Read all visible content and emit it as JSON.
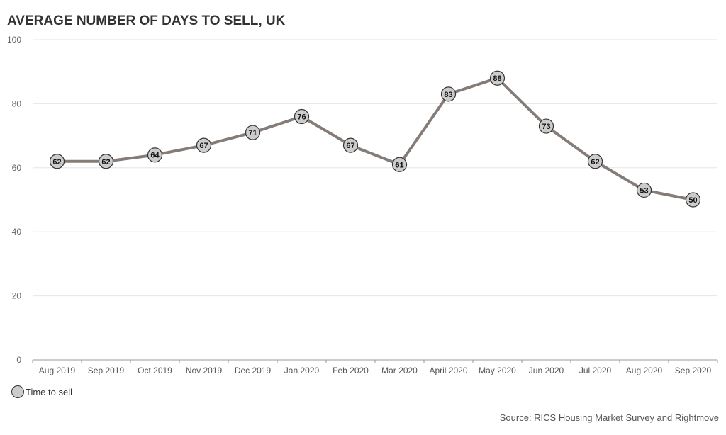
{
  "chart_data": {
    "type": "line",
    "title": "AVERAGE NUMBER OF DAYS TO SELL, UK",
    "categories": [
      "Aug 2019",
      "Sep 2019",
      "Oct 2019",
      "Nov 2019",
      "Dec 2019",
      "Jan 2020",
      "Feb 2020",
      "Mar 2020",
      "April 2020",
      "May 2020",
      "Jun 2020",
      "Jul 2020",
      "Aug 2020",
      "Sep 2020"
    ],
    "series": [
      {
        "name": "Time to sell",
        "values": [
          62,
          62,
          64,
          67,
          71,
          76,
          67,
          61,
          83,
          88,
          73,
          62,
          53,
          50
        ]
      }
    ],
    "ylim": [
      0,
      100
    ],
    "yticks": [
      0,
      20,
      40,
      60,
      80,
      100
    ],
    "grid": true,
    "legend": "bottom-left",
    "source": "Source: RICS Housing Market Survey and Rightmove",
    "colors": {
      "line": "#857b77",
      "marker": "#cccccc",
      "marker_border": "#333333"
    }
  }
}
